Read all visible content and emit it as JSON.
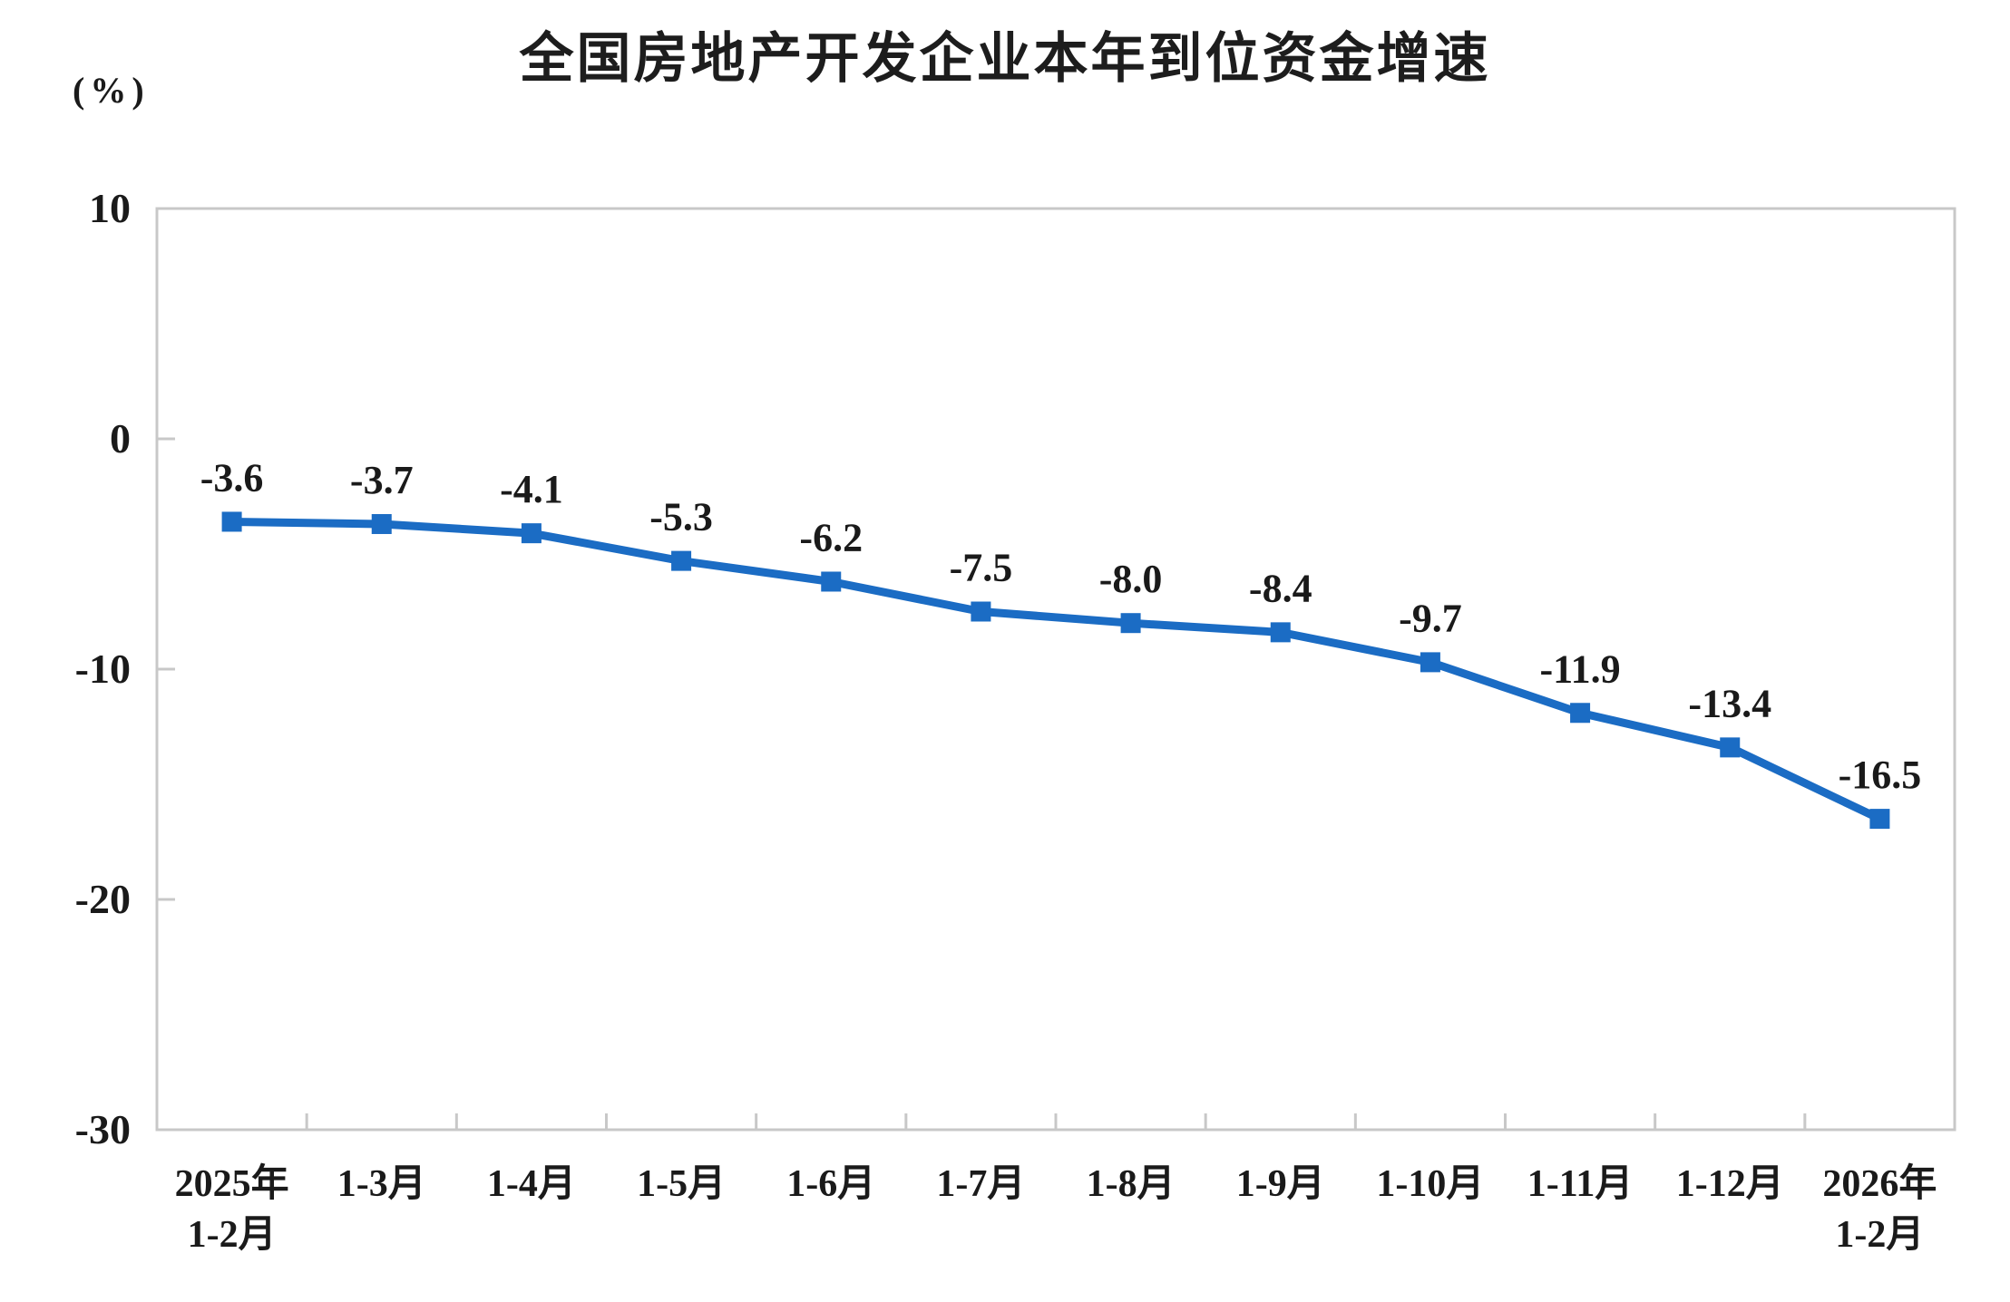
{
  "chart_data": {
    "type": "line",
    "title": "全国房地产开发企业本年到位资金增速",
    "unit_label": "(%)",
    "categories": [
      [
        "2025年",
        "1-2月"
      ],
      [
        "1-3月"
      ],
      [
        "1-4月"
      ],
      [
        "1-5月"
      ],
      [
        "1-6月"
      ],
      [
        "1-7月"
      ],
      [
        "1-8月"
      ],
      [
        "1-9月"
      ],
      [
        "1-10月"
      ],
      [
        "1-11月"
      ],
      [
        "1-12月"
      ],
      [
        "2026年",
        "1-2月"
      ]
    ],
    "values": [
      -3.6,
      -3.7,
      -4.1,
      -5.3,
      -6.2,
      -7.5,
      -8.0,
      -8.4,
      -9.7,
      -11.9,
      -13.4,
      -16.5
    ],
    "data_labels": [
      "-3.6",
      "-3.7",
      "-4.1",
      "-5.3",
      "-6.2",
      "-7.5",
      "-8.0",
      "-8.4",
      "-9.7",
      "-11.9",
      "-13.4",
      "-16.5"
    ],
    "y_ticks": [
      10,
      0,
      -10,
      -20,
      -30
    ],
    "ylim": [
      -30,
      10
    ],
    "grid": false,
    "legend": "none",
    "marker": "square",
    "colors": {
      "line": "#1b6cc4",
      "marker": "#1b6cc4",
      "axis": "#c8c8c8",
      "text": "#1a1a1a"
    }
  }
}
